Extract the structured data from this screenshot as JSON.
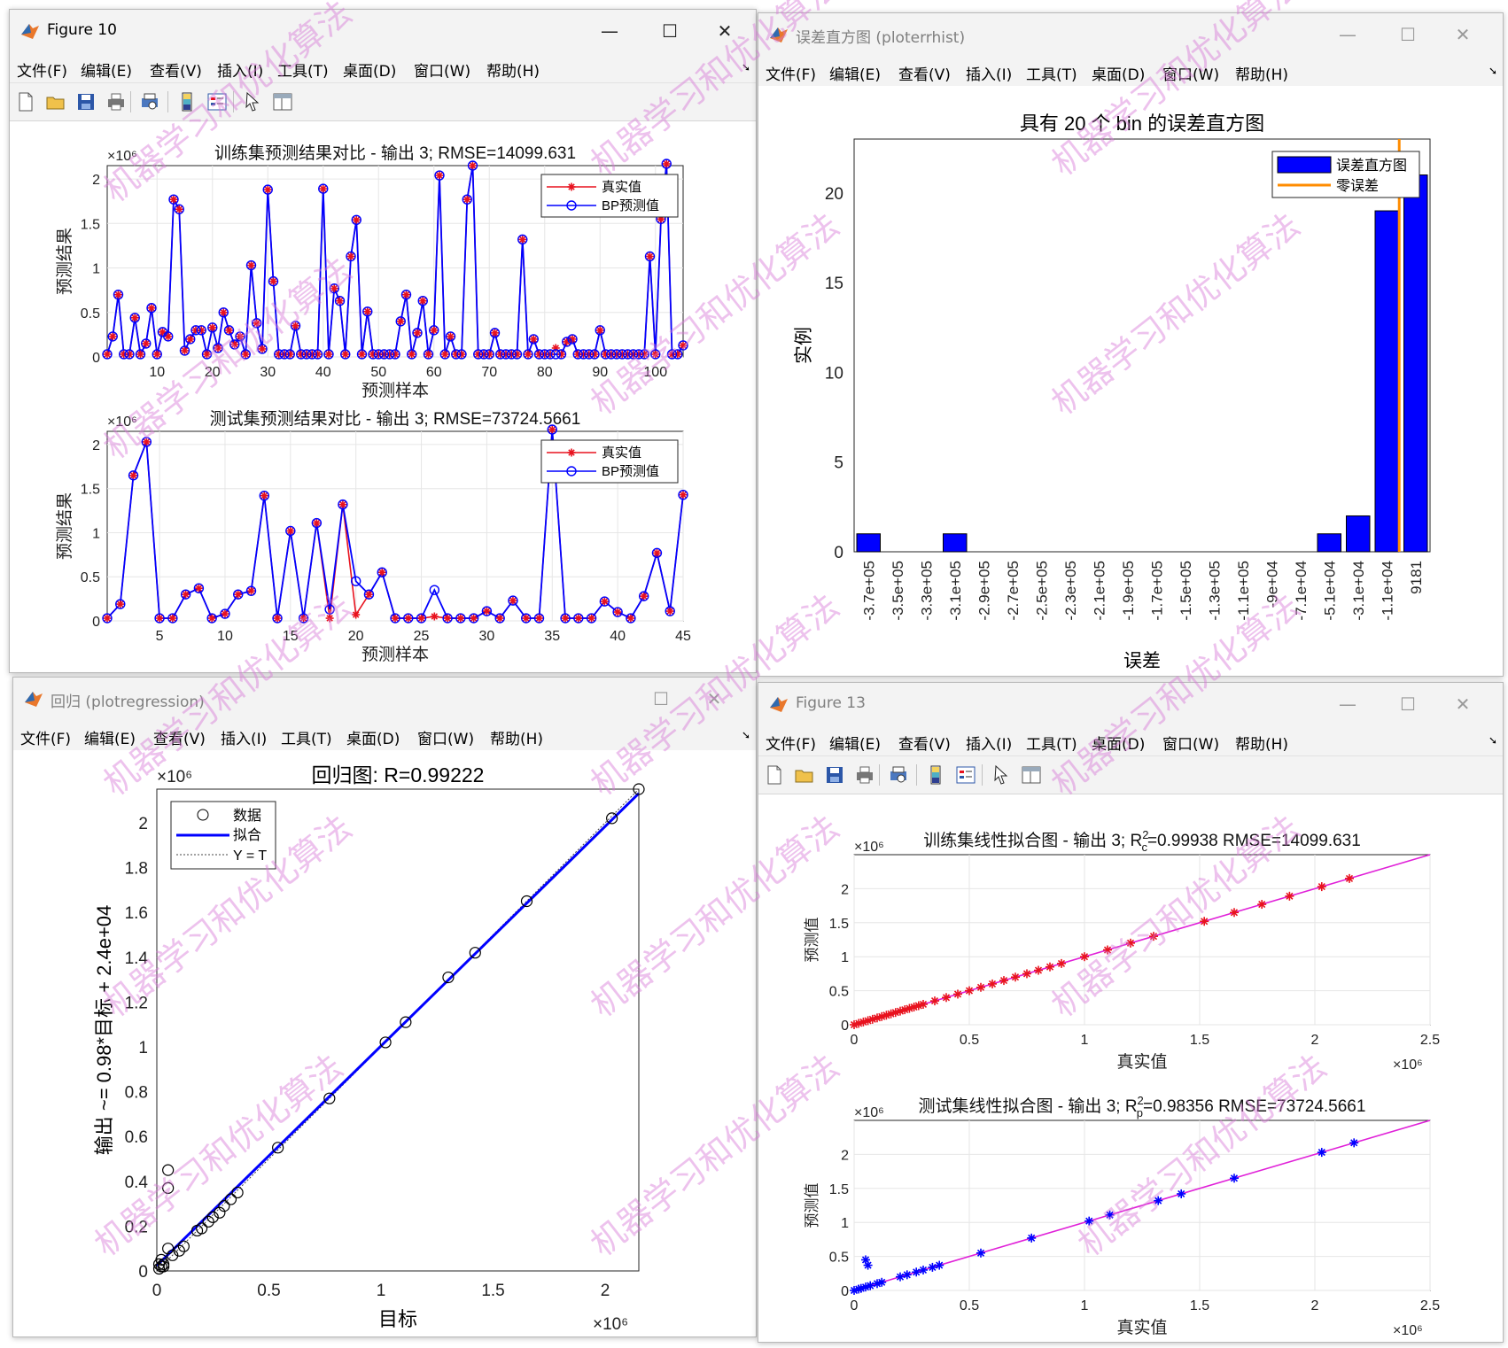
{
  "menu_items": [
    "文件(F)",
    "编辑(E)",
    "查看(V)",
    "插入(I)",
    "工具(T)",
    "桌面(D)",
    "窗口(W)",
    "帮助(H)"
  ],
  "colors": {
    "red": "#e8121e",
    "blue": "#0000ff",
    "magenta": "#e020d8",
    "orange": "#ff8c00",
    "grid": "#e6e6e6"
  },
  "toolbar_icons": [
    "new-file-icon",
    "open-folder-icon",
    "save-icon",
    "print-icon",
    "print-preview-icon",
    "colorbar-icon",
    "legend-icon",
    "pointer-icon",
    "property-inspector-icon"
  ],
  "window_buttons": {
    "minimize": "—",
    "maximize": "☐",
    "close": "✕"
  },
  "fig10": {
    "title": "Figure 10",
    "train": {
      "title": "训练集预测结果对比 - 输出 3; RMSE=14099.631",
      "xlabel": "预测样本",
      "ylabel": "预测结果",
      "exp": "×10⁶",
      "legend": [
        "真实值",
        "BP预测值"
      ],
      "xticks": [
        10,
        20,
        30,
        40,
        50,
        60,
        70,
        80,
        90,
        100
      ],
      "yticks": [
        "0",
        "0.5",
        "1",
        "1.5",
        "2"
      ],
      "xlim": [
        1,
        105
      ],
      "ylim": [
        0,
        2.15
      ],
      "values": [
        0.03,
        0.23,
        0.7,
        0.03,
        0.03,
        0.44,
        0.03,
        0.15,
        0.55,
        0.03,
        0.28,
        0.23,
        1.77,
        1.66,
        0.07,
        0.2,
        0.3,
        0.3,
        0.03,
        0.33,
        0.1,
        0.5,
        0.3,
        0.14,
        0.23,
        0.03,
        1.03,
        0.38,
        0.09,
        1.88,
        0.85,
        0.03,
        0.03,
        0.03,
        0.35,
        0.03,
        0.03,
        0.03,
        0.03,
        1.89,
        0.03,
        0.77,
        0.63,
        0.03,
        1.13,
        1.54,
        0.03,
        0.51,
        0.03,
        0.03,
        0.03,
        0.03,
        0.03,
        0.4,
        0.7,
        0.03,
        0.27,
        0.63,
        0.03,
        0.3,
        2.04,
        0.03,
        0.23,
        0.03,
        0.03,
        1.77,
        2.15,
        0.03,
        0.03,
        0.03,
        0.27,
        0.03,
        0.03,
        0.03,
        0.03,
        1.32,
        0.03,
        0.2,
        0.03,
        0.03,
        0.03,
        0.03,
        0.03,
        0.17,
        0.2,
        0.03,
        0.03,
        0.03,
        0.03,
        0.3,
        0.03,
        0.03,
        0.03,
        0.03,
        0.03,
        0.03,
        0.03,
        0.03,
        1.13,
        0.03,
        1.55,
        2.17,
        0.03,
        0.03,
        0.13
      ],
      "true_dev": {
        "82": 0.1
      }
    },
    "test": {
      "title": "测试集预测结果对比 - 输出 3; RMSE=73724.5661",
      "xlabel": "预测样本",
      "ylabel": "预测结果",
      "exp": "×10⁶",
      "legend": [
        "真实值",
        "BP预测值"
      ],
      "xticks": [
        5,
        10,
        15,
        20,
        25,
        30,
        35,
        40,
        45
      ],
      "yticks": [
        "0",
        "0.5",
        "1",
        "1.5",
        "2"
      ],
      "xlim": [
        1,
        45
      ],
      "ylim": [
        0,
        2.15
      ],
      "values": [
        0.03,
        0.19,
        1.65,
        2.03,
        0.03,
        0.03,
        0.3,
        0.37,
        0.03,
        0.08,
        0.3,
        0.34,
        1.42,
        0.03,
        1.02,
        0.03,
        1.11,
        0.13,
        1.32,
        0.45,
        0.3,
        0.55,
        0.03,
        0.03,
        0.03,
        0.35,
        0.03,
        0.03,
        0.03,
        0.11,
        0.03,
        0.23,
        0.03,
        0.03,
        2.17,
        0.03,
        0.03,
        0.03,
        0.22,
        0.1,
        0.03,
        0.28,
        0.77,
        0.11,
        1.43
      ],
      "true_dev": {
        "18": 0.03,
        "20": 0.07,
        "26": 0.05
      }
    }
  },
  "hist": {
    "title": "误差直方图 (ploterrhist)",
    "plot_title": "具有 20 个 bin 的误差直方图",
    "ylabel": "实例",
    "xlabel": "误差",
    "legend": [
      "误差直方图",
      "零误差"
    ],
    "yticks": [
      "0",
      "5",
      "10",
      "15",
      "20"
    ],
    "categories": [
      "-3.7e+05",
      "-3.5e+05",
      "-3.3e+05",
      "-3.1e+05",
      "-2.9e+05",
      "-2.7e+05",
      "-2.5e+05",
      "-2.3e+05",
      "-2.1e+05",
      "-1.9e+05",
      "-1.7e+05",
      "-1.5e+05",
      "-1.3e+05",
      "-1.1e+05",
      "-9e+04",
      "-7.1e+04",
      "-5.1e+04",
      "-3.1e+04",
      "-1.1e+04",
      "9181"
    ],
    "values": [
      1,
      0,
      0,
      1,
      0,
      0,
      0,
      0,
      0,
      0,
      0,
      0,
      0,
      0,
      0,
      0,
      1,
      2,
      19,
      21
    ],
    "ylim": [
      0,
      23
    ]
  },
  "regr": {
    "title": "回归 (plotregression)",
    "plot_title": "回归图: R=0.99222",
    "xlabel": "目标",
    "ylabel": "输出 ~= 0.98*目标 + 2.4e+04",
    "legend": [
      "数据",
      "拟合",
      "Y = T"
    ],
    "x_exp": "×10⁶",
    "y_exp": "×10⁶",
    "xticks": [
      "0",
      "0.5",
      "1",
      "1.5",
      "2"
    ],
    "yticks": [
      "0",
      "0.2",
      "0.4",
      "0.6",
      "0.8",
      "1",
      "1.2",
      "1.4",
      "1.6",
      "1.8",
      "2"
    ],
    "xlim": [
      0,
      2.15
    ],
    "ylim": [
      0,
      2.15
    ],
    "fit": {
      "slope": 0.98,
      "intercept": 0.024
    },
    "points": [
      [
        0.01,
        0.01
      ],
      [
        0.02,
        0.02
      ],
      [
        0.03,
        0.03
      ],
      [
        0.01,
        0.03
      ],
      [
        0.02,
        0.05
      ],
      [
        0.03,
        0.02
      ],
      [
        0.05,
        0.1
      ],
      [
        0.07,
        0.07
      ],
      [
        0.1,
        0.09
      ],
      [
        0.12,
        0.11
      ],
      [
        0.18,
        0.18
      ],
      [
        0.2,
        0.19
      ],
      [
        0.23,
        0.22
      ],
      [
        0.25,
        0.24
      ],
      [
        0.28,
        0.26
      ],
      [
        0.3,
        0.29
      ],
      [
        0.33,
        0.32
      ],
      [
        0.36,
        0.35
      ],
      [
        0.54,
        0.55
      ],
      [
        0.77,
        0.77
      ],
      [
        1.02,
        1.02
      ],
      [
        1.11,
        1.11
      ],
      [
        1.3,
        1.31
      ],
      [
        1.42,
        1.42
      ],
      [
        1.65,
        1.65
      ],
      [
        2.03,
        2.02
      ],
      [
        2.15,
        2.15
      ],
      [
        0.05,
        0.45
      ],
      [
        0.05,
        0.37
      ]
    ]
  },
  "fig13": {
    "title": "Figure 13",
    "train": {
      "title": "训练集线性拟合图 - 输出 3; R",
      "title_sup": "2",
      "title_sub": "c",
      "title_rest": "=0.99938  RMSE=14099.631",
      "xlabel": "真实值",
      "ylabel": "预测值",
      "x_exp": "×10⁶",
      "y_exp": "×10⁶",
      "xticks": [
        "0",
        "0.5",
        "1",
        "1.5",
        "2",
        "2.5"
      ],
      "yticks": [
        "0",
        "0.5",
        "1",
        "1.5",
        "2"
      ],
      "xlim": [
        0,
        2.5
      ],
      "ylim": [
        0,
        2.5
      ],
      "points": [
        [
          0.0,
          0.0
        ],
        [
          0.02,
          0.02
        ],
        [
          0.04,
          0.04
        ],
        [
          0.06,
          0.06
        ],
        [
          0.08,
          0.08
        ],
        [
          0.1,
          0.1
        ],
        [
          0.12,
          0.12
        ],
        [
          0.14,
          0.14
        ],
        [
          0.16,
          0.16
        ],
        [
          0.18,
          0.18
        ],
        [
          0.2,
          0.2
        ],
        [
          0.22,
          0.22
        ],
        [
          0.24,
          0.24
        ],
        [
          0.26,
          0.26
        ],
        [
          0.28,
          0.28
        ],
        [
          0.3,
          0.3
        ],
        [
          0.35,
          0.35
        ],
        [
          0.4,
          0.4
        ],
        [
          0.45,
          0.45
        ],
        [
          0.5,
          0.5
        ],
        [
          0.55,
          0.55
        ],
        [
          0.6,
          0.6
        ],
        [
          0.65,
          0.65
        ],
        [
          0.7,
          0.7
        ],
        [
          0.75,
          0.75
        ],
        [
          0.8,
          0.8
        ],
        [
          0.85,
          0.85
        ],
        [
          0.9,
          0.9
        ],
        [
          1.0,
          1.0
        ],
        [
          1.1,
          1.1
        ],
        [
          1.2,
          1.2
        ],
        [
          1.3,
          1.3
        ],
        [
          1.52,
          1.52
        ],
        [
          1.65,
          1.65
        ],
        [
          1.77,
          1.77
        ],
        [
          1.89,
          1.89
        ],
        [
          2.03,
          2.03
        ],
        [
          2.15,
          2.15
        ]
      ]
    },
    "test": {
      "title": "测试集线性拟合图 - 输出 3; R",
      "title_sup": "2",
      "title_sub": "p",
      "title_rest": "=0.98356  RMSE=73724.5661",
      "xlabel": "真实值",
      "ylabel": "预测值",
      "x_exp": "×10⁶",
      "y_exp": "×10⁶",
      "xticks": [
        "0",
        "0.5",
        "1",
        "1.5",
        "2",
        "2.5"
      ],
      "yticks": [
        "0",
        "0.5",
        "1",
        "1.5",
        "2"
      ],
      "xlim": [
        0,
        2.5
      ],
      "ylim": [
        0,
        2.5
      ],
      "points": [
        [
          0.0,
          0.0
        ],
        [
          0.02,
          0.02
        ],
        [
          0.03,
          0.03
        ],
        [
          0.05,
          0.05
        ],
        [
          0.07,
          0.07
        ],
        [
          0.1,
          0.1
        ],
        [
          0.12,
          0.12
        ],
        [
          0.2,
          0.2
        ],
        [
          0.23,
          0.23
        ],
        [
          0.27,
          0.27
        ],
        [
          0.3,
          0.3
        ],
        [
          0.34,
          0.34
        ],
        [
          0.37,
          0.37
        ],
        [
          0.55,
          0.55
        ],
        [
          0.77,
          0.77
        ],
        [
          1.02,
          1.02
        ],
        [
          1.11,
          1.11
        ],
        [
          1.32,
          1.32
        ],
        [
          1.42,
          1.42
        ],
        [
          1.65,
          1.65
        ],
        [
          2.03,
          2.03
        ],
        [
          2.17,
          2.17
        ],
        [
          0.05,
          0.45
        ],
        [
          0.06,
          0.37
        ]
      ]
    }
  },
  "watermark": "机器学习和优化算法"
}
